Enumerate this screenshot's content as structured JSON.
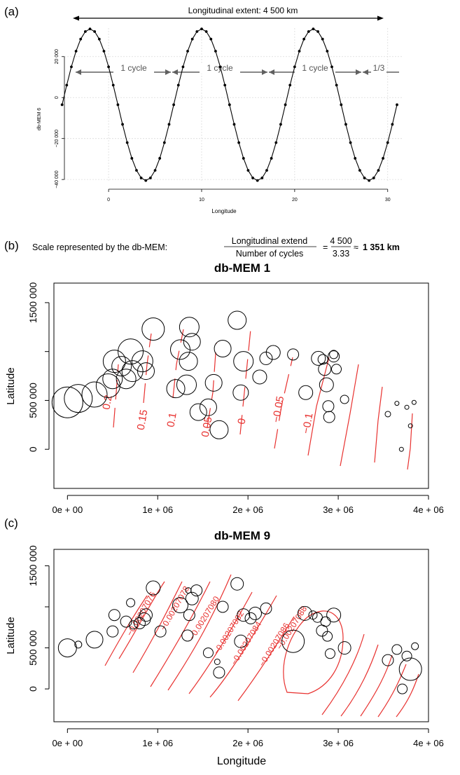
{
  "panel_labels": {
    "a": "(a)",
    "b": "(b)",
    "c": "(c)"
  },
  "colors": {
    "contour": "#e8312f",
    "axis": "#000000",
    "grid": "#dcdcdc",
    "arrow": "#606060"
  },
  "formula": {
    "prefix": "Scale represented by the db-MEM:",
    "numerator": "Longitudinal extend",
    "denominator": "Number of cycles",
    "equals": "=",
    "num_value": "4 500",
    "den_value": "3.33",
    "approx": "≈",
    "result": "1 351 km"
  },
  "chart_data": [
    {
      "id": "a",
      "type": "line",
      "ylabel": "db-MEM 6",
      "xlabel": "Longitude",
      "header": "Longitudinal extent: 4 500 km",
      "xticks": [
        "0",
        "10",
        "20",
        "30"
      ],
      "yticks": [
        "20 000",
        "0",
        "−20 000",
        "−40 000"
      ],
      "xlim": [
        -5.2,
        31.6
      ],
      "ylim": [
        -42000,
        36000
      ],
      "amplitude": 37000,
      "offset": -3500,
      "period": 12,
      "x_start": -5,
      "x_end": 31,
      "n_points": 73,
      "cycle_labels": [
        "1 cycle",
        "1 cycle",
        "1 cycle",
        "1/3"
      ]
    },
    {
      "id": "b",
      "type": "scatter",
      "title": "db-MEM 1",
      "ylabel": "Latitude",
      "xlabel": "",
      "xticks": [
        "0e + 00",
        "1e + 06",
        "2e + 06",
        "3e + 06",
        "4e + 06"
      ],
      "yticks": [
        "0",
        "500 000",
        "1000 000",
        "1500 000"
      ],
      "xlim": [
        -150000,
        4000000
      ],
      "ylim": [
        -400000,
        1700000
      ],
      "points": [
        [
          0,
          480000,
          22
        ],
        [
          120000,
          520000,
          20
        ],
        [
          300000,
          560000,
          18
        ],
        [
          450000,
          650000,
          17
        ],
        [
          500000,
          720000,
          14
        ],
        [
          520000,
          900000,
          16
        ],
        [
          600000,
          850000,
          14
        ],
        [
          650000,
          720000,
          14
        ],
        [
          700000,
          1000000,
          18
        ],
        [
          720000,
          800000,
          15
        ],
        [
          830000,
          900000,
          15
        ],
        [
          870000,
          800000,
          12
        ],
        [
          950000,
          1230000,
          16
        ],
        [
          1200000,
          620000,
          13
        ],
        [
          1250000,
          1020000,
          14
        ],
        [
          1320000,
          660000,
          14
        ],
        [
          1340000,
          900000,
          13
        ],
        [
          1350000,
          1250000,
          14
        ],
        [
          1380000,
          1100000,
          12
        ],
        [
          1450000,
          380000,
          12
        ],
        [
          1560000,
          430000,
          12
        ],
        [
          1620000,
          680000,
          12
        ],
        [
          1680000,
          200000,
          13
        ],
        [
          1720000,
          1030000,
          12
        ],
        [
          1880000,
          1320000,
          13
        ],
        [
          1950000,
          900000,
          14
        ],
        [
          1920000,
          580000,
          11
        ],
        [
          2130000,
          740000,
          10
        ],
        [
          2200000,
          930000,
          9
        ],
        [
          2280000,
          990000,
          10
        ],
        [
          2500000,
          970000,
          8
        ],
        [
          2640000,
          580000,
          10
        ],
        [
          2780000,
          930000,
          10
        ],
        [
          2830000,
          920000,
          7
        ],
        [
          2850000,
          820000,
          9
        ],
        [
          2870000,
          660000,
          10
        ],
        [
          2890000,
          440000,
          8
        ],
        [
          2900000,
          330000,
          8
        ],
        [
          2950000,
          950000,
          8
        ],
        [
          2950000,
          970000,
          6
        ],
        [
          2980000,
          820000,
          7
        ],
        [
          3070000,
          510000,
          6
        ],
        [
          3550000,
          360000,
          4
        ],
        [
          3650000,
          470000,
          3
        ],
        [
          3700000,
          0,
          3
        ],
        [
          3760000,
          430000,
          3
        ],
        [
          3800000,
          240000,
          3
        ],
        [
          3840000,
          480000,
          3
        ]
      ],
      "contour_labels": [
        "0.2",
        "0.15",
        "0.1",
        "0.05",
        "0",
        "−0.05",
        "−0.1"
      ]
    },
    {
      "id": "c",
      "type": "scatter",
      "title": "db-MEM 9",
      "ylabel": "Latitude",
      "xlabel": "Longitude",
      "xticks": [
        "0e + 00",
        "1e + 06",
        "2e + 06",
        "3e + 06",
        "4e + 06"
      ],
      "yticks": [
        "0",
        "500 000",
        "1000 000",
        "1500 000"
      ],
      "xlim": [
        -150000,
        4000000
      ],
      "ylim": [
        -400000,
        1700000
      ],
      "points": [
        [
          0,
          500000,
          13
        ],
        [
          120000,
          540000,
          5
        ],
        [
          300000,
          600000,
          12
        ],
        [
          500000,
          700000,
          8
        ],
        [
          520000,
          900000,
          8
        ],
        [
          650000,
          820000,
          8
        ],
        [
          700000,
          1050000,
          6
        ],
        [
          730000,
          780000,
          6
        ],
        [
          800000,
          800000,
          8
        ],
        [
          850000,
          850000,
          9
        ],
        [
          870000,
          900000,
          9
        ],
        [
          950000,
          1230000,
          10
        ],
        [
          1030000,
          700000,
          8
        ],
        [
          1250000,
          1020000,
          11
        ],
        [
          1330000,
          650000,
          8
        ],
        [
          1340000,
          1200000,
          4
        ],
        [
          1350000,
          900000,
          8
        ],
        [
          1380000,
          1100000,
          9
        ],
        [
          1430000,
          1200000,
          8
        ],
        [
          1560000,
          440000,
          7
        ],
        [
          1660000,
          330000,
          4
        ],
        [
          1680000,
          200000,
          8
        ],
        [
          1720000,
          1000000,
          8
        ],
        [
          1880000,
          1280000,
          9
        ],
        [
          1950000,
          900000,
          9
        ],
        [
          1920000,
          580000,
          9
        ],
        [
          2030000,
          860000,
          8
        ],
        [
          2080000,
          920000,
          9
        ],
        [
          2200000,
          980000,
          8
        ],
        [
          2500000,
          580000,
          16
        ],
        [
          2630000,
          920000,
          10
        ],
        [
          2720000,
          900000,
          6
        ],
        [
          2770000,
          870000,
          7
        ],
        [
          2820000,
          710000,
          8
        ],
        [
          2860000,
          820000,
          7
        ],
        [
          2880000,
          640000,
          7
        ],
        [
          2910000,
          430000,
          7
        ],
        [
          2950000,
          900000,
          10
        ],
        [
          3070000,
          500000,
          9
        ],
        [
          3550000,
          350000,
          8
        ],
        [
          3650000,
          480000,
          7
        ],
        [
          3710000,
          0,
          7
        ],
        [
          3760000,
          400000,
          7
        ],
        [
          3800000,
          240000,
          16
        ],
        [
          3850000,
          520000,
          5
        ]
      ],
      "contour_labels": [
        "−0.00207076",
        "−0.00207078",
        "−0.00207080",
        "−0.00207082",
        "−0.00207084",
        "−0.00207086",
        "−0.00207088"
      ]
    }
  ]
}
